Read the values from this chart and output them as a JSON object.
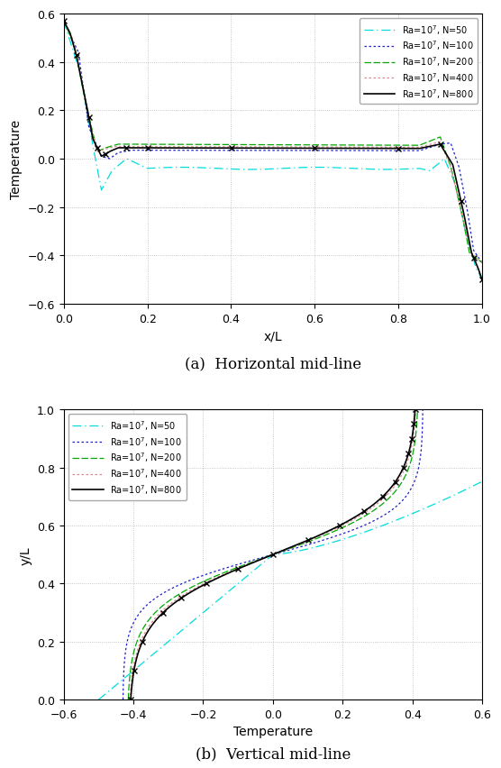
{
  "caption_a": "(a)  Horizontal mid-line",
  "caption_b": "(b)  Vertical mid-line",
  "xlabel_a": "x/L",
  "ylabel_a": "Temperature",
  "xlabel_b": "Temperature",
  "ylabel_b": "y/L",
  "xlim_a": [
    0,
    1
  ],
  "ylim_a": [
    -0.6,
    0.6
  ],
  "xlim_b": [
    -0.6,
    0.6
  ],
  "ylim_b": [
    0,
    1
  ],
  "background": "#ffffff",
  "grid_color": "#999999",
  "xticks_a": [
    0.0,
    0.2,
    0.4,
    0.6,
    0.8,
    1.0
  ],
  "yticks_a": [
    -0.6,
    -0.4,
    -0.2,
    0.0,
    0.2,
    0.4,
    0.6
  ],
  "xticks_b": [
    -0.6,
    -0.4,
    -0.2,
    0.0,
    0.2,
    0.4,
    0.6
  ],
  "yticks_b": [
    0.0,
    0.2,
    0.4,
    0.6,
    0.8,
    1.0
  ],
  "color_50": "#00DDDD",
  "color_100": "#2020CC",
  "color_200": "#00AA00",
  "color_400": "#DD8888",
  "color_800": "#000000"
}
